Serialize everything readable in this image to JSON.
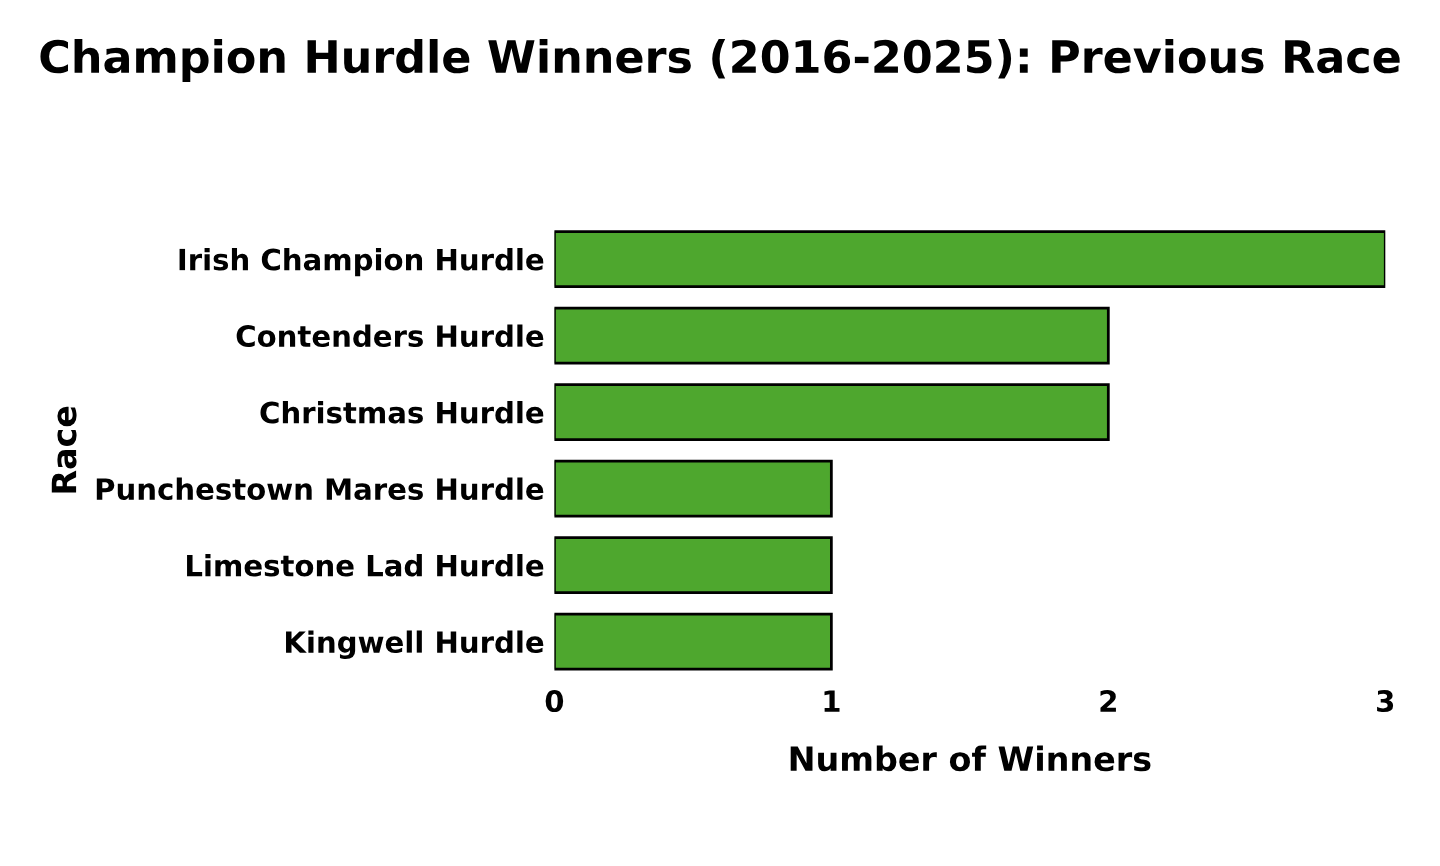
{
  "chart_data": {
    "type": "bar",
    "orientation": "horizontal",
    "title": "Champion Hurdle Winners (2016-2025): Previous Race",
    "xlabel": "Number of Winners",
    "ylabel": "Race",
    "categories": [
      "Irish Champion Hurdle",
      "Contenders Hurdle",
      "Christmas Hurdle",
      "Punchestown Mares Hurdle",
      "Limestone Lad Hurdle",
      "Kingwell Hurdle"
    ],
    "values": [
      3,
      2,
      2,
      1,
      1,
      1
    ],
    "color": "#4ea72e",
    "xlim": [
      0,
      3
    ],
    "xticks": [
      0,
      1,
      2,
      3
    ],
    "grid": false
  }
}
